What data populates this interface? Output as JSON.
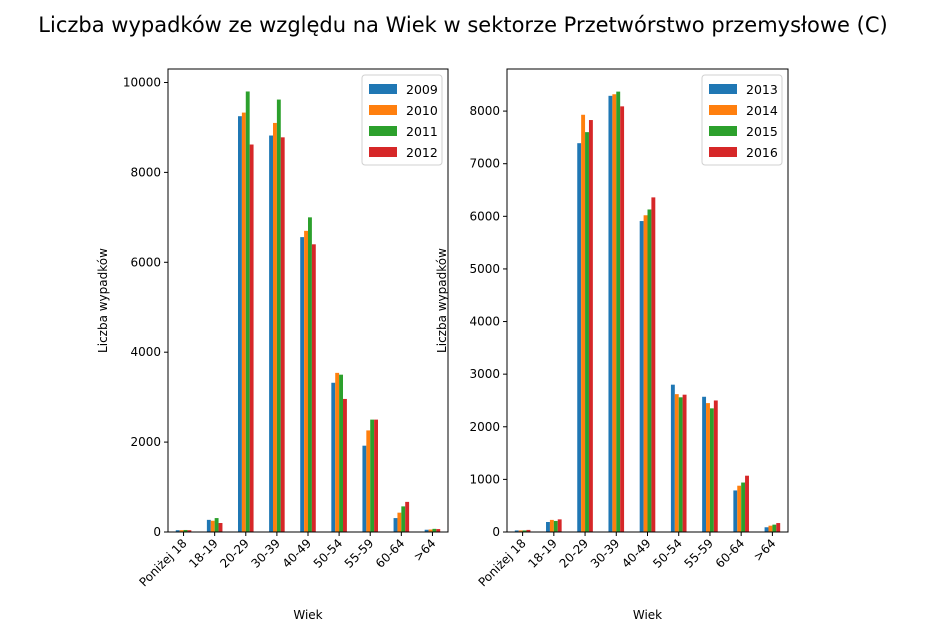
{
  "figure": {
    "title": "Liczba wypadków ze względu na Wiek w sektorze Przetwórstwo przemysłowe (C)"
  },
  "colors": {
    "series": [
      "#1f77b4",
      "#ff7f0e",
      "#2ca02c",
      "#d62728"
    ]
  },
  "chart_data": [
    {
      "type": "bar",
      "title": "",
      "xlabel": "Wiek",
      "ylabel": "Liczba wypadków",
      "categories": [
        "Poniżej 18",
        "18-19",
        "20-29",
        "30-39",
        "40-49",
        "50-54",
        "55-59",
        "60-64",
        ">64"
      ],
      "ylim": [
        0,
        10300
      ],
      "yticks": [
        0,
        2000,
        4000,
        6000,
        8000,
        10000
      ],
      "grid": false,
      "legend_position": "top-right",
      "series": [
        {
          "name": "2009",
          "values": [
            40,
            270,
            9250,
            8820,
            6560,
            3320,
            1920,
            310,
            50
          ]
        },
        {
          "name": "2010",
          "values": [
            40,
            250,
            9330,
            9100,
            6700,
            3540,
            2260,
            430,
            55
          ]
        },
        {
          "name": "2011",
          "values": [
            45,
            310,
            9800,
            9620,
            7000,
            3500,
            2500,
            570,
            70
          ]
        },
        {
          "name": "2012",
          "values": [
            40,
            200,
            8620,
            8780,
            6400,
            2960,
            2500,
            670,
            65
          ]
        }
      ]
    },
    {
      "type": "bar",
      "title": "",
      "xlabel": "Wiek",
      "ylabel": "Liczba wypadków",
      "categories": [
        "Poniżej 18",
        "18-19",
        "20-29",
        "30-39",
        "40-49",
        "50-54",
        "55-59",
        "60-64",
        ">64"
      ],
      "ylim": [
        0,
        8800
      ],
      "yticks": [
        0,
        1000,
        2000,
        3000,
        4000,
        5000,
        6000,
        7000,
        8000
      ],
      "grid": false,
      "legend_position": "top-right",
      "series": [
        {
          "name": "2013",
          "values": [
            30,
            190,
            7390,
            8290,
            5910,
            2800,
            2570,
            790,
            90
          ]
        },
        {
          "name": "2014",
          "values": [
            30,
            230,
            7930,
            8320,
            6020,
            2620,
            2450,
            880,
            120
          ]
        },
        {
          "name": "2015",
          "values": [
            30,
            210,
            7600,
            8370,
            6130,
            2560,
            2350,
            940,
            140
          ]
        },
        {
          "name": "2016",
          "values": [
            40,
            240,
            7830,
            8090,
            6360,
            2610,
            2500,
            1070,
            170
          ]
        }
      ]
    }
  ]
}
